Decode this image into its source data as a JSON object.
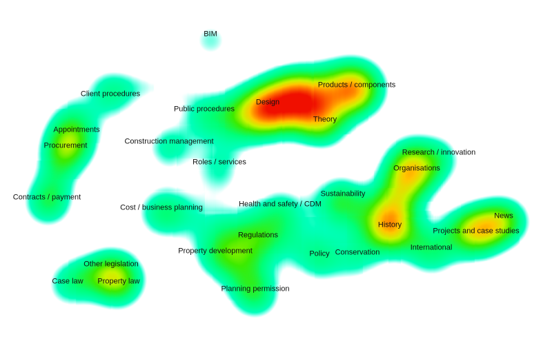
{
  "topics": [
    {
      "key": "bim",
      "label": "BIM",
      "weight": 0.15
    },
    {
      "key": "client-procedures",
      "label": "Client procedures",
      "weight": 0.2
    },
    {
      "key": "appointments",
      "label": "Appointments",
      "weight": 0.35
    },
    {
      "key": "procurement",
      "label": "Procurement",
      "weight": 0.4
    },
    {
      "key": "contracts-payment",
      "label": "Contracts / payment",
      "weight": 0.4
    },
    {
      "key": "public-procedures",
      "label": "Public procedures",
      "weight": 0.25
    },
    {
      "key": "construction-management",
      "label": "Construction management",
      "weight": 0.4
    },
    {
      "key": "design",
      "label": "Design",
      "weight": 0.9
    },
    {
      "key": "products-components",
      "label": "Products / components",
      "weight": 0.95
    },
    {
      "key": "theory",
      "label": "Theory",
      "weight": 0.55
    },
    {
      "key": "roles-services",
      "label": "Roles / services",
      "weight": 0.3
    },
    {
      "key": "research-innovation",
      "label": "Research / innovation",
      "weight": 0.35
    },
    {
      "key": "organisations",
      "label": "Organisations",
      "weight": 0.5
    },
    {
      "key": "sustainability",
      "label": "Sustainability",
      "weight": 0.45
    },
    {
      "key": "cost-business-planning",
      "label": "Cost / business planning",
      "weight": 0.3
    },
    {
      "key": "health-and-safety-cdm",
      "label": "Health and safety / CDM",
      "weight": 0.35
    },
    {
      "key": "regulations",
      "label": "Regulations",
      "weight": 0.3
    },
    {
      "key": "history",
      "label": "History",
      "weight": 0.55
    },
    {
      "key": "news",
      "label": "News",
      "weight": 0.4
    },
    {
      "key": "projects-and-case-studies",
      "label": "Projects and case studies",
      "weight": 0.75
    },
    {
      "key": "property-development",
      "label": "Property development",
      "weight": 0.3
    },
    {
      "key": "international",
      "label": "International",
      "weight": 0.25
    },
    {
      "key": "policy",
      "label": "Policy",
      "weight": 0.25
    },
    {
      "key": "conservation",
      "label": "Conservation",
      "weight": 0.25
    },
    {
      "key": "other-legislation",
      "label": "Other legislation",
      "weight": 0.35
    },
    {
      "key": "case-law",
      "label": "Case law",
      "weight": 0.15
    },
    {
      "key": "property-law",
      "label": "Property law",
      "weight": 0.4
    },
    {
      "key": "planning-permission",
      "label": "Planning permission",
      "weight": 0.3
    }
  ]
}
